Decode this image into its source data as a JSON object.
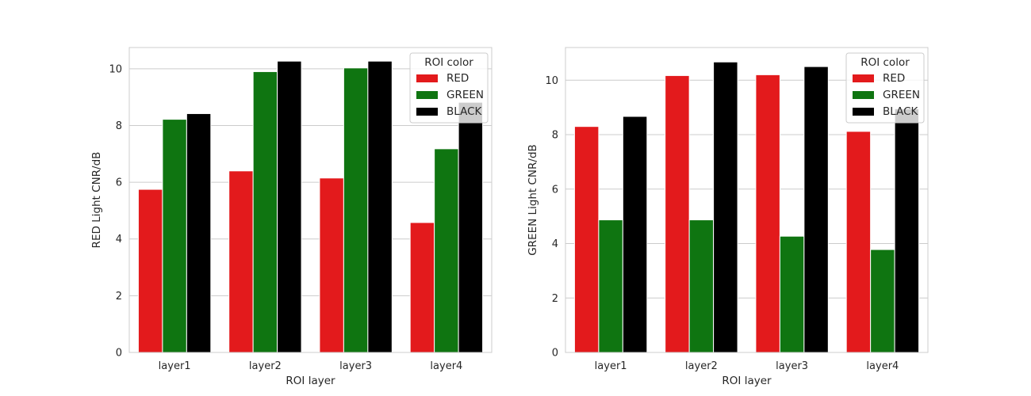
{
  "chart_data": [
    {
      "type": "bar",
      "categories": [
        "layer1",
        "layer2",
        "layer3",
        "layer4"
      ],
      "series": [
        {
          "name": "RED",
          "color": "#e31a1c",
          "values": [
            5.75,
            6.4,
            6.15,
            4.58
          ]
        },
        {
          "name": "GREEN",
          "color": "#0f7511",
          "values": [
            8.22,
            9.9,
            10.03,
            7.18
          ]
        },
        {
          "name": "BLACK",
          "color": "#000000",
          "values": [
            8.42,
            10.27,
            10.27,
            8.82
          ]
        }
      ],
      "xlabel": "ROI layer",
      "ylabel": "RED Light CNR/dB",
      "ylim": [
        0,
        10.75
      ],
      "yticks": [
        "0",
        "2",
        "4",
        "6",
        "8",
        "10"
      ],
      "legend": {
        "title": "ROI color",
        "placement": "top-right"
      },
      "grid": true
    },
    {
      "type": "bar",
      "categories": [
        "layer1",
        "layer2",
        "layer3",
        "layer4"
      ],
      "series": [
        {
          "name": "RED",
          "color": "#e31a1c",
          "values": [
            8.3,
            10.17,
            10.2,
            8.12
          ]
        },
        {
          "name": "GREEN",
          "color": "#0f7511",
          "values": [
            4.87,
            4.87,
            4.27,
            3.78
          ]
        },
        {
          "name": "BLACK",
          "color": "#000000",
          "values": [
            8.67,
            10.67,
            10.5,
            8.95
          ]
        }
      ],
      "xlabel": "ROI layer",
      "ylabel": "GREEN Light CNR/dB",
      "ylim": [
        0,
        11.2
      ],
      "yticks": [
        "0",
        "2",
        "4",
        "6",
        "8",
        "10"
      ],
      "legend": {
        "title": "ROI color",
        "placement": "top-right"
      },
      "grid": true
    }
  ]
}
